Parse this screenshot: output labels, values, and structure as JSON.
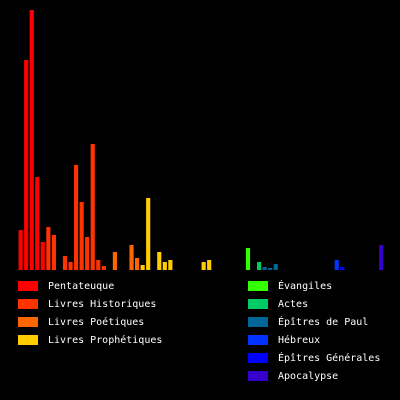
{
  "chart_data": {
    "type": "bar",
    "ylim": [
      0,
      260
    ],
    "series": [
      {
        "name": "Pentateuque",
        "color": "#ff0000",
        "values": [
          40,
          210,
          260,
          93,
          28
        ]
      },
      {
        "name": "Livres Historiques",
        "color": "#ff3300",
        "values": [
          43,
          35,
          0,
          14,
          8,
          105,
          68,
          33,
          126,
          10,
          4,
          0
        ]
      },
      {
        "name": "Livres Poétiques",
        "color": "#ff6600",
        "values": [
          18,
          0,
          0,
          25,
          12
        ]
      },
      {
        "name": "Livres Prophétiques",
        "color": "#ffcc00",
        "values": [
          5,
          72,
          0,
          18,
          8,
          10,
          0,
          0,
          0,
          0,
          0,
          8,
          10,
          0,
          0,
          0,
          0
        ]
      },
      {
        "name": "Évangiles",
        "color": "#33ff00",
        "values": [
          0,
          0,
          22,
          0
        ]
      },
      {
        "name": "Actes",
        "color": "#00cc66",
        "values": [
          8
        ]
      },
      {
        "name": "Épîtres de Paul",
        "color": "#006699",
        "values": [
          3,
          2,
          6,
          0,
          0,
          0,
          0,
          0,
          0,
          0,
          0,
          0,
          0
        ]
      },
      {
        "name": "Hébreux",
        "color": "#0033ff",
        "values": [
          10
        ]
      },
      {
        "name": "Épîtres Générales",
        "color": "#0000ff",
        "values": [
          3,
          0,
          0,
          0,
          0,
          0,
          0
        ]
      },
      {
        "name": "Apocalypse",
        "color": "#3300cc",
        "values": [
          25
        ]
      }
    ]
  }
}
